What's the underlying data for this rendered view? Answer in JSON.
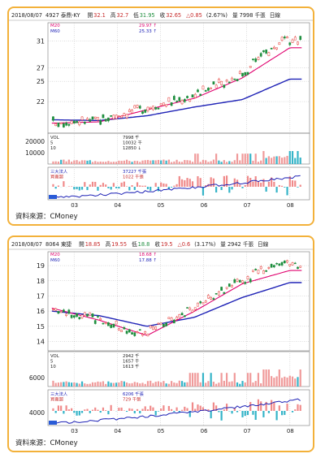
{
  "charts": [
    {
      "date": "2018/08/07",
      "stock": "4927 泰鼎-KY",
      "open_label": "開",
      "open": "32.1",
      "high_label": "高",
      "high": "32.7",
      "low_label": "低",
      "low": "31.95",
      "close_label": "收",
      "close": "32.65",
      "change": "△0.85",
      "change_pct": "(2.67%)",
      "volume_text": "量 7998 千張",
      "period": "日線",
      "ma_legend": [
        {
          "name": "M20",
          "value": "29.97 ↑"
        },
        {
          "name": "M60",
          "value": "25.33 ↑"
        }
      ],
      "price_ticks": [
        "31",
        "27",
        "25",
        "22"
      ],
      "vol_legend": [
        {
          "name": "VOL",
          "value": "7998 千"
        },
        {
          "name": "5",
          "value": "10032 千"
        },
        {
          "name": "10",
          "value": "12850 ↓"
        }
      ],
      "vol_ticks": [
        "20000",
        "10000"
      ],
      "inst_legend": [
        {
          "name": "三大法人",
          "value": "37227 千張"
        },
        {
          "name": "買賣超",
          "value": "1022 千張"
        }
      ],
      "months": [
        "03",
        "04",
        "05",
        "06",
        "07",
        "08"
      ],
      "source": "資料來源：CMoney"
    },
    {
      "date": "2018/08/07",
      "stock": "8064 東捷",
      "open_label": "開",
      "open": "18.85",
      "high_label": "高",
      "high": "19.55",
      "low_label": "低",
      "low": "18.8",
      "close_label": "收",
      "close": "19.5",
      "change": "△0.6",
      "change_pct": "(3.17%)",
      "volume_text": "量 2942 千張",
      "period": "日線",
      "ma_legend": [
        {
          "name": "M20",
          "value": "18.68 ↑"
        },
        {
          "name": "M60",
          "value": "17.88 ↑"
        }
      ],
      "price_ticks": [
        "19",
        "18",
        "17",
        "16",
        "15",
        "14"
      ],
      "vol_legend": [
        {
          "name": "VOL",
          "value": "2942 千"
        },
        {
          "name": "5",
          "value": "1657 千"
        },
        {
          "name": "10",
          "value": "1613 千"
        }
      ],
      "vol_ticks": [
        "6000"
      ],
      "inst_legend": [
        {
          "name": "三大法人",
          "value": "6206 千張"
        },
        {
          "name": "買賣超",
          "value": "729 千張"
        }
      ],
      "months": [
        "03",
        "04",
        "05",
        "06",
        "07",
        "08"
      ],
      "source": "資料來源：CMoney"
    }
  ],
  "chart_data": [
    {
      "type": "line",
      "x": [
        "03",
        "04",
        "05",
        "06",
        "07",
        "08"
      ],
      "series": [
        {
          "name": "M20",
          "values": [
            18.8,
            19.0,
            20.8,
            22.5,
            25.5,
            29.97
          ]
        },
        {
          "name": "M60",
          "values": [
            19.3,
            19.2,
            19.9,
            21.2,
            22.3,
            25.33
          ]
        }
      ],
      "yticks": [
        31,
        27,
        25,
        22
      ],
      "ylim": [
        17.8,
        33.2
      ],
      "volume_ticks": [
        20000,
        10000
      ],
      "colors": {
        "m20": "#e0006e",
        "m60": "#1e22b6",
        "up": "#e53935",
        "down": "#1e8e3e",
        "vol": "#f09a9a",
        "inst_pos": "#f08a8a",
        "inst_neg": "#35b4c8"
      }
    },
    {
      "type": "line",
      "x": [
        "03",
        "04",
        "05",
        "06",
        "07",
        "08"
      ],
      "series": [
        {
          "name": "M20",
          "values": [
            16.2,
            15.4,
            14.4,
            16.0,
            17.8,
            18.68
          ]
        },
        {
          "name": "M60",
          "values": [
            16.0,
            15.7,
            15.0,
            15.6,
            16.9,
            17.88
          ]
        }
      ],
      "yticks": [
        19,
        18,
        17,
        16,
        15,
        14
      ],
      "ylim": [
        13.6,
        19.7
      ],
      "volume_ticks": [
        6000
      ],
      "colors": {
        "m20": "#e0006e",
        "m60": "#1e22b6",
        "up": "#e53935",
        "down": "#1e8e3e",
        "vol": "#f09a9a",
        "inst_pos": "#f08a8a",
        "inst_neg": "#35b4c8"
      }
    }
  ]
}
